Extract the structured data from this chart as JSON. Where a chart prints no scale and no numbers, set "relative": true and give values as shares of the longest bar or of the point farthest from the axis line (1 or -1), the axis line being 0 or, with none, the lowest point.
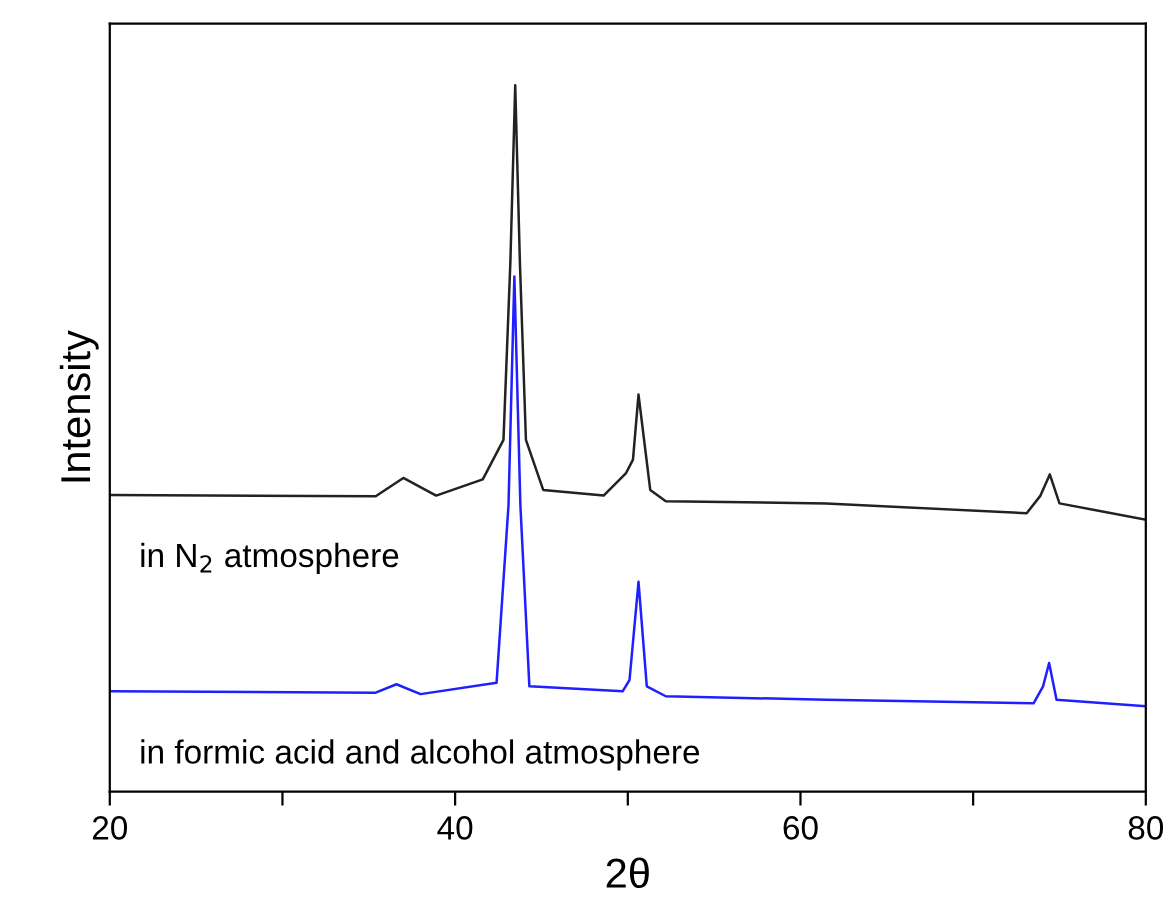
{
  "chart_data": {
    "type": "line",
    "xlabel": "2θ",
    "ylabel": "Intensity",
    "relative": true,
    "xlim": [
      20,
      80
    ],
    "xticks": [
      20,
      {
        "value": 30,
        "label": null
      },
      40,
      {
        "value": 50,
        "label": null
      },
      60,
      {
        "value": 70,
        "label": null
      },
      80
    ],
    "grid": false,
    "marker": "none",
    "line_style": "solid",
    "tick_labels": "x",
    "annotations": [
      "in N$_{2}$ atmosphere",
      "in formic acid and alcohol atmosphere"
    ],
    "series": [
      {
        "color": "#222222",
        "x": [
          20,
          35.4,
          37.0,
          38.9,
          41.6,
          42.8,
          43.2,
          43.48,
          43.75,
          44.1,
          45.1,
          48.6,
          49.9,
          50.3,
          50.62,
          51.3,
          52.2,
          61.5,
          73.1,
          73.9,
          74.44,
          75.0,
          80
        ],
        "values": [
          0.42,
          0.418,
          0.444,
          0.419,
          0.442,
          0.498,
          0.75,
          1,
          0.75,
          0.498,
          0.427,
          0.419,
          0.451,
          0.47,
          0.562,
          0.427,
          0.411,
          0.408,
          0.394,
          0.419,
          0.449,
          0.408,
          0.385
        ]
      },
      {
        "color": "#2020ff",
        "x": [
          20,
          35.4,
          36.6,
          38.0,
          42.4,
          43.09,
          43.43,
          43.78,
          44.3,
          49.7,
          50.1,
          50.62,
          51.1,
          52.2,
          61.5,
          73.5,
          74.05,
          74.4,
          74.83,
          80
        ],
        "values": [
          0.142,
          0.14,
          0.152,
          0.138,
          0.154,
          0.405,
          0.729,
          0.405,
          0.149,
          0.142,
          0.158,
          0.297,
          0.149,
          0.135,
          0.13,
          0.125,
          0.149,
          0.182,
          0.13,
          0.121
        ]
      }
    ]
  }
}
